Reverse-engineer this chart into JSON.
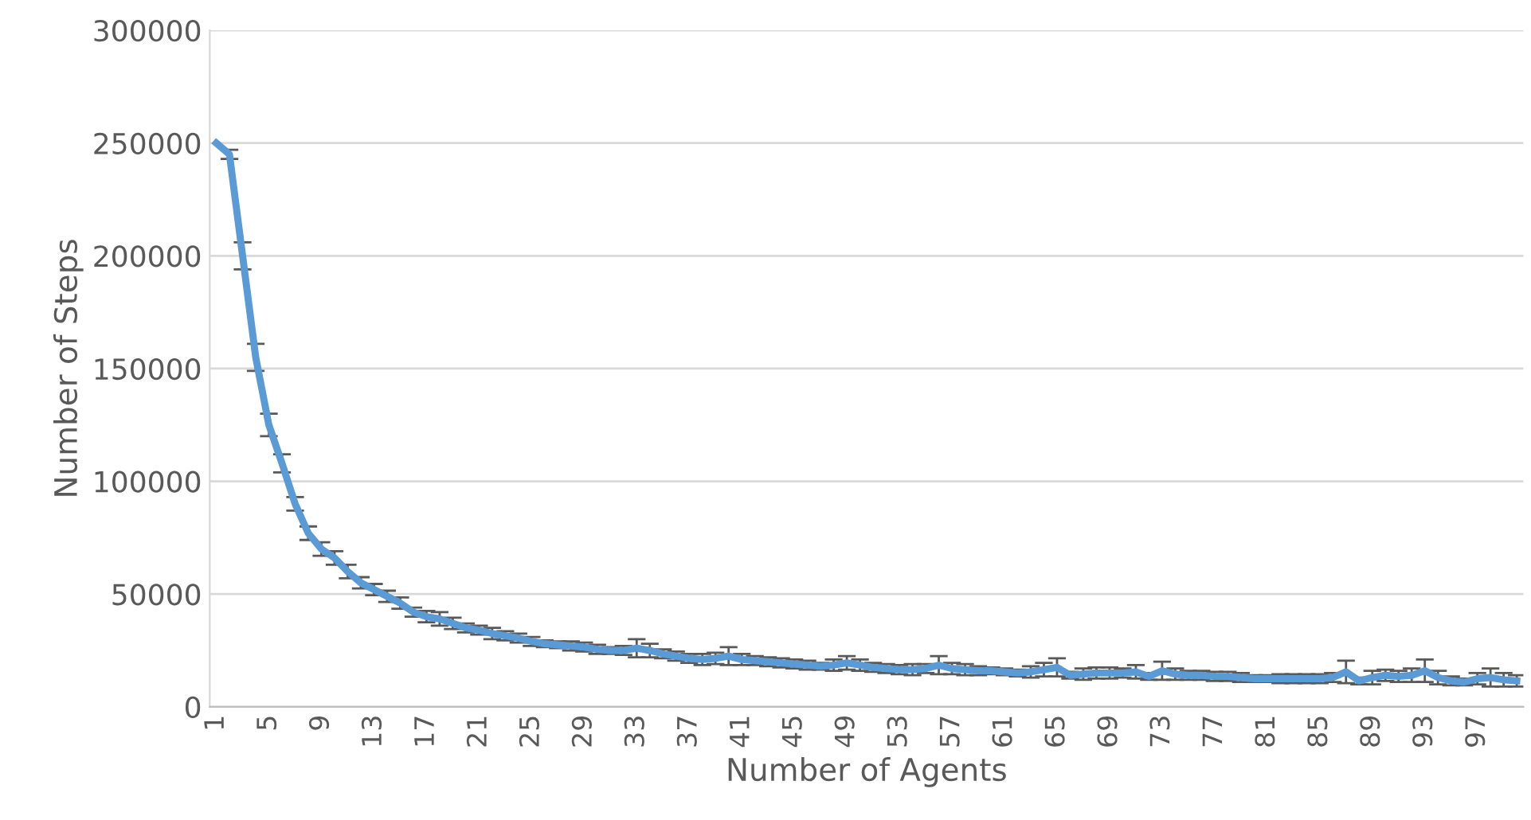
{
  "chart_data": {
    "type": "line",
    "xlabel": "Number of Agents",
    "ylabel": "Number of Steps",
    "categories": [
      "1",
      null,
      null,
      null,
      "5",
      null,
      null,
      null,
      "9",
      null,
      null,
      null,
      "13",
      null,
      null,
      null,
      "17",
      null,
      null,
      null,
      "21",
      null,
      null,
      null,
      "25",
      null,
      null,
      null,
      "29",
      null,
      null,
      null,
      "33",
      null,
      null,
      null,
      "37",
      null,
      null,
      null,
      "41",
      null,
      null,
      null,
      "45",
      null,
      null,
      null,
      "49",
      null,
      null,
      null,
      "53",
      null,
      null,
      null,
      "57",
      null,
      null,
      null,
      "61",
      null,
      null,
      null,
      "65",
      null,
      null,
      null,
      "69",
      null,
      null,
      null,
      "73",
      null,
      null,
      null,
      "77",
      null,
      null,
      null,
      "81",
      null,
      null,
      null,
      "85",
      null,
      null,
      null,
      "89",
      null,
      null,
      null,
      "93",
      null,
      null,
      null,
      "97",
      null,
      null,
      null
    ],
    "series": [
      {
        "color": "#5b9bd5",
        "values": [
          250000,
          245000,
          200000,
          155000,
          125000,
          108000,
          90000,
          77000,
          70000,
          66000,
          60000,
          55000,
          52000,
          49000,
          46000,
          42000,
          40000,
          39000,
          37000,
          35000,
          34000,
          32500,
          31500,
          30500,
          29000,
          28000,
          27500,
          27000,
          26500,
          25500,
          25000,
          25000,
          26000,
          25000,
          23500,
          22500,
          21500,
          21000,
          21500,
          22500,
          21000,
          20500,
          20000,
          19500,
          19000,
          18500,
          18000,
          18500,
          19500,
          18500,
          17500,
          17000,
          16500,
          16500,
          17000,
          18500,
          17000,
          16500,
          16000,
          16000,
          15500,
          15000,
          15500,
          16500,
          17500,
          14000,
          14500,
          15000,
          15000,
          15000,
          15500,
          13500,
          16000,
          14500,
          14000,
          14000,
          13500,
          13500,
          13000,
          12500,
          12500,
          12500,
          12500,
          12500,
          12500,
          13000,
          15500,
          11500,
          13000,
          14000,
          13500,
          14000,
          16000,
          13000,
          11500,
          11000,
          12500,
          13000,
          12000,
          11500
        ],
        "errors": [
          null,
          2000,
          6000,
          6000,
          5000,
          4000,
          3000,
          3000,
          3000,
          3000,
          3000,
          2500,
          2500,
          2500,
          2500,
          2000,
          2500,
          3000,
          2500,
          2000,
          2000,
          2500,
          2000,
          2000,
          2000,
          1500,
          1500,
          2000,
          2000,
          2000,
          1500,
          2000,
          4000,
          3000,
          2000,
          2000,
          2000,
          2500,
          2500,
          4000,
          2500,
          2000,
          2000,
          2000,
          2000,
          2000,
          1500,
          2500,
          3000,
          2500,
          2000,
          2000,
          2000,
          2500,
          2000,
          4000,
          2500,
          2500,
          2000,
          1500,
          1500,
          1500,
          2500,
          3000,
          4000,
          1500,
          2500,
          2500,
          2500,
          2000,
          3000,
          1500,
          4000,
          2500,
          2000,
          2000,
          2000,
          2000,
          2000,
          1500,
          1500,
          2000,
          2000,
          2000,
          2000,
          2000,
          5000,
          1500,
          3000,
          2500,
          2500,
          3000,
          5000,
          3000,
          2000,
          1500,
          2500,
          4000,
          3000,
          2500
        ]
      }
    ],
    "ylim": [
      0,
      300000
    ],
    "yticks": [
      0,
      50000,
      100000,
      150000,
      200000,
      250000,
      300000
    ],
    "grid": "y",
    "legend": false,
    "marker": "none",
    "line_style": "solid"
  }
}
